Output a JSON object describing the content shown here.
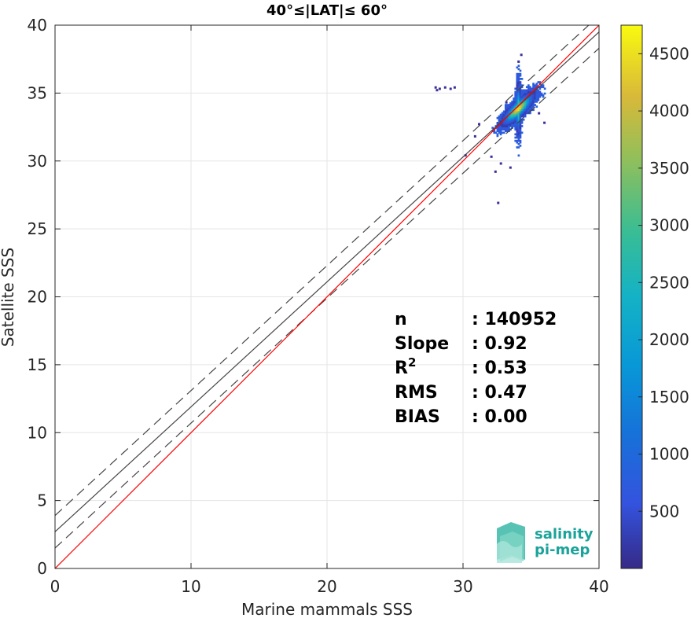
{
  "chart_data": {
    "type": "scatter",
    "title": "40°≤|LAT|≤ 60°",
    "xlabel": "Marine mammals SSS",
    "ylabel": "Satellite SSS",
    "xlim": [
      0,
      40
    ],
    "ylim": [
      0,
      40
    ],
    "xticks": [
      0,
      10,
      20,
      30,
      40
    ],
    "yticks": [
      0,
      5,
      10,
      15,
      20,
      25,
      30,
      35,
      40
    ],
    "grid": true,
    "colorbar": {
      "ticks": [
        500,
        1000,
        1500,
        2000,
        2500,
        3000,
        3500,
        4000,
        4500
      ],
      "range": [
        0,
        4750
      ],
      "colormap": "parula"
    },
    "lines": {
      "identity": {
        "slope": 1,
        "intercept": 0,
        "color": "#ff0000"
      },
      "fit": {
        "slope": 0.92,
        "intercept": 2.7,
        "color": "#444444"
      },
      "upper_bound": {
        "slope": 0.92,
        "intercept": 3.9,
        "color": "#444444",
        "dash": "dashed"
      },
      "lower_bound": {
        "slope": 0.92,
        "intercept": 1.5,
        "color": "#444444",
        "dash": "dashed"
      }
    },
    "density_cluster": {
      "x_range": [
        31.5,
        36
      ],
      "y_range": [
        30,
        38
      ],
      "peak": [
        34,
        33.8
      ],
      "peak_count": 4700
    },
    "stats": [
      {
        "label": "n",
        "value": ": 140952"
      },
      {
        "label": "Slope",
        "value": ": 0.92"
      },
      {
        "label": "R",
        "sup": "2",
        "value": ": 0.53"
      },
      {
        "label": "RMS",
        "value": ": 0.47"
      },
      {
        "label": "BIAS",
        "value": ": 0.00"
      }
    ]
  },
  "logo": {
    "line1": "salinity",
    "line2": "pi-mep",
    "color": "#1aa39a"
  }
}
